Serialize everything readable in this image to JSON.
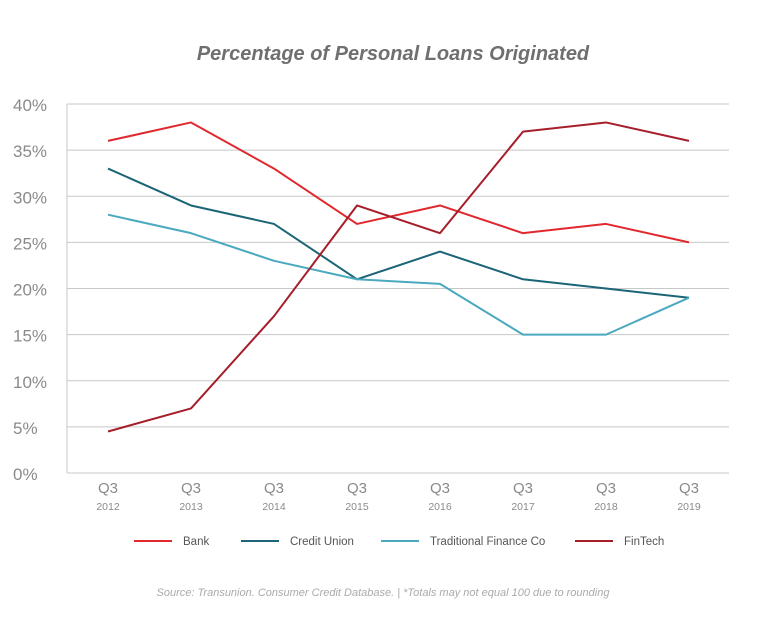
{
  "chart_data": {
    "type": "line",
    "title": "Percentage of Personal Loans Originated",
    "categories": [
      {
        "quarter": "Q3",
        "year": "2012"
      },
      {
        "quarter": "Q3",
        "year": "2013"
      },
      {
        "quarter": "Q3",
        "year": "2014"
      },
      {
        "quarter": "Q3",
        "year": "2015"
      },
      {
        "quarter": "Q3",
        "year": "2016"
      },
      {
        "quarter": "Q3",
        "year": "2017"
      },
      {
        "quarter": "Q3",
        "year": "2018"
      },
      {
        "quarter": "Q3",
        "year": "2019"
      }
    ],
    "ylim": [
      0,
      40
    ],
    "yticks": [
      0,
      5,
      10,
      15,
      20,
      25,
      30,
      35,
      40
    ],
    "ytick_labels": [
      "0%",
      "5%",
      "10%",
      "15%",
      "20%",
      "25%",
      "30%",
      "35%",
      "40%"
    ],
    "grid": true,
    "legend_position": "bottom",
    "series": [
      {
        "name": "Bank",
        "color": "#e0282e",
        "values": [
          36,
          38,
          33,
          27,
          29,
          26,
          27,
          25
        ]
      },
      {
        "name": "Credit Union",
        "color": "#1b6577",
        "values": [
          33,
          29,
          27,
          21,
          24,
          21,
          20,
          19
        ]
      },
      {
        "name": "Traditional Finance Co",
        "color": "#4aa9bf",
        "values": [
          28,
          26,
          23,
          21,
          20.5,
          15,
          15,
          19
        ]
      },
      {
        "name": "FinTech",
        "color": "#a61e2a",
        "values": [
          4.5,
          7,
          17,
          29,
          26,
          37,
          38,
          36
        ]
      }
    ],
    "source_note": "Source: Transunion. Consumer Credit Database. | *Totals may not equal 100 due to rounding"
  }
}
